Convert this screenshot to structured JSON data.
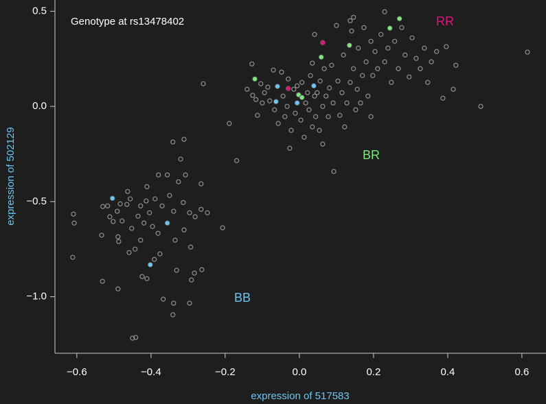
{
  "chart_data": {
    "type": "scatter",
    "legend_title": "Genotype at rs13478402",
    "xlabel": "expression of 517583",
    "ylabel": "expression of 502129",
    "xlim": [
      -0.659,
      0.665
    ],
    "ylim": [
      -1.297,
      0.559
    ],
    "xticks": [
      {
        "value": -0.6,
        "label": "−0.6"
      },
      {
        "value": -0.4,
        "label": "−0.4"
      },
      {
        "value": -0.2,
        "label": "−0.2"
      },
      {
        "value": 0,
        "label": "0.0"
      },
      0.2,
      0.4,
      0.6
    ],
    "yticks": [
      {
        "value": -1.0,
        "label": "−1.0"
      },
      {
        "value": -0.5,
        "label": "−0.5"
      },
      {
        "value": 0,
        "label": "0.0"
      },
      0.5
    ],
    "series": [
      {
        "color": "#8a8a8a",
        "x": [
          -0.609,
          -0.607,
          -0.611,
          -0.533,
          -0.531,
          -0.517,
          -0.511,
          -0.491,
          -0.489,
          -0.487,
          -0.489,
          -0.463,
          -0.456,
          -0.465,
          -0.478,
          -0.452,
          -0.459,
          -0.443,
          -0.435,
          -0.428,
          -0.419,
          -0.428,
          -0.411,
          -0.413,
          -0.404,
          -0.396,
          -0.389,
          -0.38,
          -0.37,
          -0.381,
          -0.376,
          -0.391,
          -0.411,
          -0.424,
          -0.367,
          -0.356,
          -0.35,
          -0.341,
          -0.339,
          -0.335,
          -0.331,
          -0.339,
          -0.341,
          -0.326,
          -0.32,
          -0.311,
          -0.313,
          -0.307,
          -0.296,
          -0.293,
          -0.283,
          -0.291,
          -0.296,
          -0.281,
          -0.265,
          -0.265,
          -0.248,
          -0.263,
          -0.311,
          -0.207,
          -0.45,
          -0.441,
          -0.53,
          -0.502,
          -0.483,
          -0.259,
          -0.189,
          -0.169,
          -0.128,
          -0.126,
          -0.117,
          -0.113,
          -0.104,
          -0.094,
          -0.085,
          -0.08,
          -0.07,
          -0.067,
          -0.057,
          -0.048,
          -0.044,
          -0.039,
          -0.033,
          -0.03,
          -0.022,
          -0.026,
          -0.015,
          -0.011,
          -0.006,
          0.004,
          0.007,
          0.013,
          0.017,
          0.022,
          0.026,
          0.03,
          0.035,
          0.035,
          0.041,
          0.041,
          0.044,
          0.048,
          0.054,
          0.056,
          0.063,
          0.067,
          0.072,
          0.078,
          0.081,
          0.087,
          0.091,
          0.093,
          0.1,
          0.104,
          0.109,
          0.115,
          0.119,
          0.122,
          0.128,
          0.137,
          0.141,
          0.146,
          0.152,
          0.156,
          0.159,
          0.165,
          0.17,
          0.174,
          0.18,
          0.185,
          0.193,
          0.198,
          0.204,
          0.211,
          0.146,
          0.22,
          0.23,
          0.239,
          0.248,
          0.257,
          0.267,
          0.276,
          0.285,
          0.296,
          0.304,
          0.315,
          0.326,
          0.337,
          0.346,
          0.356,
          0.37,
          0.387,
          0.396,
          0.415,
          0.422,
          0.489,
          0.615,
          0.23,
          0.137,
          -0.1,
          -0.141,
          0.193,
          0.063
        ],
        "y": [
          -0.566,
          -0.613,
          -0.793,
          -0.677,
          -0.919,
          -0.523,
          -0.58,
          -0.551,
          -0.685,
          -0.71,
          -0.959,
          -0.447,
          -0.486,
          -0.515,
          -0.602,
          -0.641,
          -0.768,
          -0.75,
          -0.577,
          -0.523,
          -0.613,
          -0.703,
          -0.422,
          -0.497,
          -0.559,
          -0.631,
          -0.486,
          -0.36,
          -0.523,
          -0.667,
          -0.775,
          -0.804,
          -0.905,
          -0.894,
          -1.013,
          -0.36,
          -0.468,
          -0.187,
          -0.551,
          -0.703,
          -0.861,
          -1.034,
          -1.095,
          -0.396,
          -0.277,
          -0.649,
          -0.505,
          -0.36,
          -0.559,
          -0.739,
          -0.876,
          -0.912,
          -1.034,
          -0.58,
          -0.541,
          -0.407,
          -0.559,
          -0.858,
          -0.173,
          -0.638,
          -1.218,
          -1.214,
          -0.526,
          -0.605,
          -0.512,
          0.119,
          -0.09,
          -0.285,
          0.223,
          0.058,
          0.036,
          -0.047,
          0.119,
          0.072,
          0.101,
          0.029,
          0.191,
          -0.018,
          -0.09,
          0.18,
          0.054,
          -0.054,
          0.0,
          0.144,
          -0.126,
          -0.22,
          0.09,
          -0.036,
          0.108,
          -0.072,
          0.126,
          -0.162,
          0.018,
          0.072,
          -0.018,
          0.162,
          -0.108,
          0.227,
          0.054,
          0.378,
          -0.054,
          0.072,
          -0.126,
          0.133,
          0.0,
          0.198,
          0.054,
          -0.054,
          0.097,
          0.216,
          0.018,
          -0.342,
          0.425,
          0.133,
          -0.047,
          0.072,
          0.27,
          -0.108,
          0.018,
          0.126,
          0.396,
          0.198,
          -0.018,
          0.09,
          0.306,
          0.018,
          0.162,
          0.414,
          0.234,
          0.054,
          0.342,
          0.162,
          0.288,
          0.198,
          0.468,
          0.378,
          0.234,
          0.306,
          0.126,
          0.342,
          0.198,
          0.414,
          0.27,
          0.155,
          0.36,
          0.252,
          0.198,
          0.306,
          0.126,
          0.234,
          0.288,
          0.043,
          0.314,
          0.09,
          0.216,
          0.0,
          0.285,
          0.497,
          0.45,
          0.018,
          0.09,
          -0.054,
          -0.198
        ]
      },
      {
        "name": "RR",
        "color": "#e0147a",
        "x": [
          0.063,
          -0.03
        ],
        "y": [
          0.335,
          0.094
        ]
      },
      {
        "name": "BR",
        "color": "#7ee87e",
        "x": [
          -0.12,
          0.059,
          0.135,
          0.244,
          0.27,
          -0.002,
          0.007
        ],
        "y": [
          0.144,
          0.259,
          0.321,
          0.411,
          0.461,
          0.061,
          0.047
        ]
      },
      {
        "name": "BB",
        "color": "#6ec4f0",
        "x": [
          -0.059,
          0.039,
          -0.063,
          -0.006,
          -0.504,
          -0.356,
          -0.402
        ],
        "y": [
          0.105,
          0.108,
          0.025,
          0.018,
          -0.483,
          -0.613,
          -0.832
        ]
      }
    ]
  }
}
